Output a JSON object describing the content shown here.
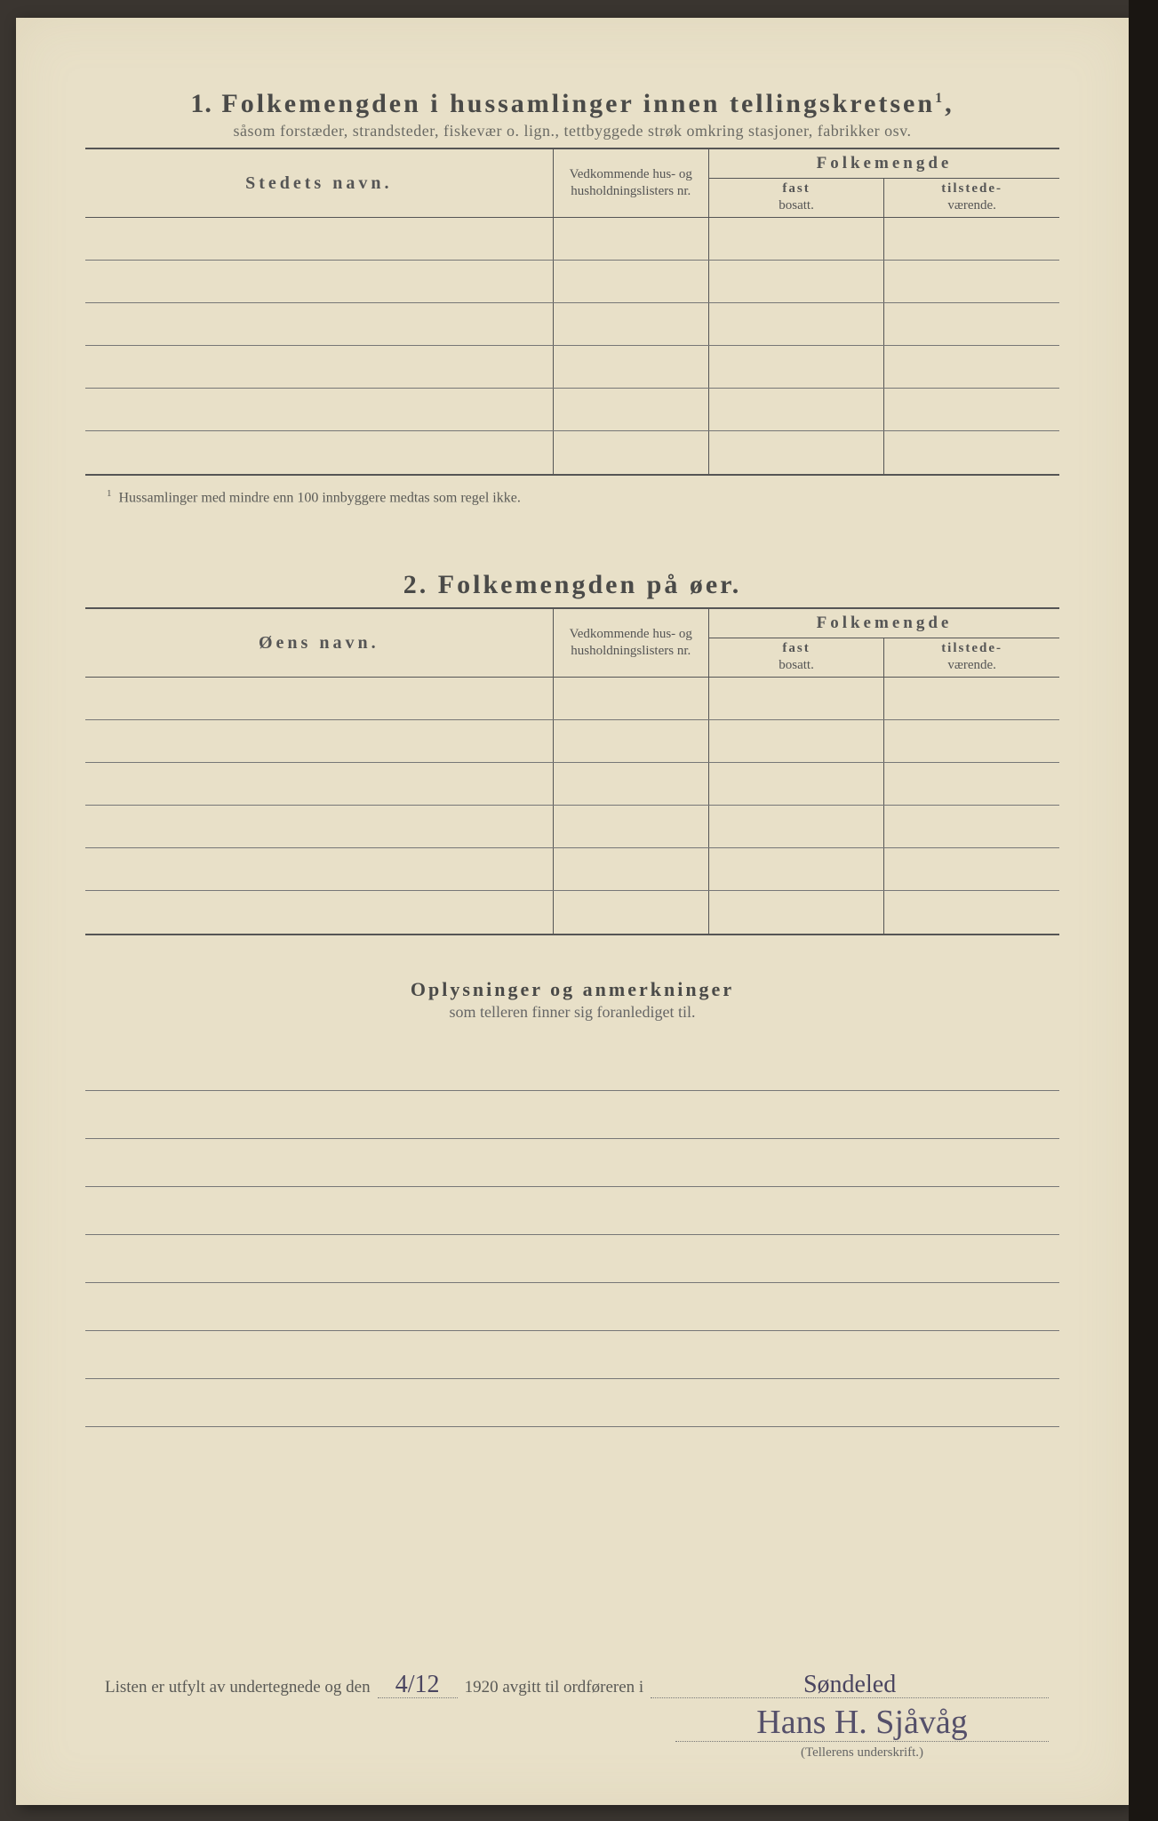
{
  "page": {
    "background_color": "#e8e0c8",
    "outer_background": "#3a3530",
    "rule_color": "#555555",
    "thin_rule_color": "#777777",
    "text_color": "#4a4a48",
    "font_family": "Georgia, Times New Roman, serif"
  },
  "section1": {
    "number": "1.",
    "title": "Folkemengden i hussamlinger innen tellingskretsen",
    "title_sup": "1",
    "subtitle": "såsom forstæder, strandsteder, fiskevær o. lign., tettbyggede strøk omkring stasjoner, fabrikker osv.",
    "columns": {
      "name": "Stedets navn.",
      "lists": "Vedkommende hus- og husholdningslisters nr.",
      "folkemengde": "Folkemengde",
      "fast_b": "fast",
      "fast_s": "bosatt.",
      "tilst_b": "tilstede-",
      "tilst_s": "værende."
    },
    "row_count": 6,
    "footnote_mark": "1",
    "footnote": "Hussamlinger med mindre enn 100 innbyggere medtas som regel ikke."
  },
  "section2": {
    "number": "2.",
    "title": "Folkemengden på øer.",
    "columns": {
      "name": "Øens navn.",
      "lists": "Vedkommende hus- og husholdningslisters nr.",
      "folkemengde": "Folkemengde",
      "fast_b": "fast",
      "fast_s": "bosatt.",
      "tilst_b": "tilstede-",
      "tilst_s": "værende."
    },
    "row_count": 6
  },
  "section3": {
    "title": "Oplysninger og anmerkninger",
    "subtitle": "som telleren finner sig foranlediget til.",
    "line_count": 8
  },
  "signoff": {
    "pre": "Listen er utfylt av undertegnede og den",
    "date": "4/12",
    "mid": "1920 avgitt til ordføreren i",
    "place": "Søndeled",
    "signature": "Hans H. Sjåvåg",
    "caption": "(Tellerens underskrift.)"
  }
}
